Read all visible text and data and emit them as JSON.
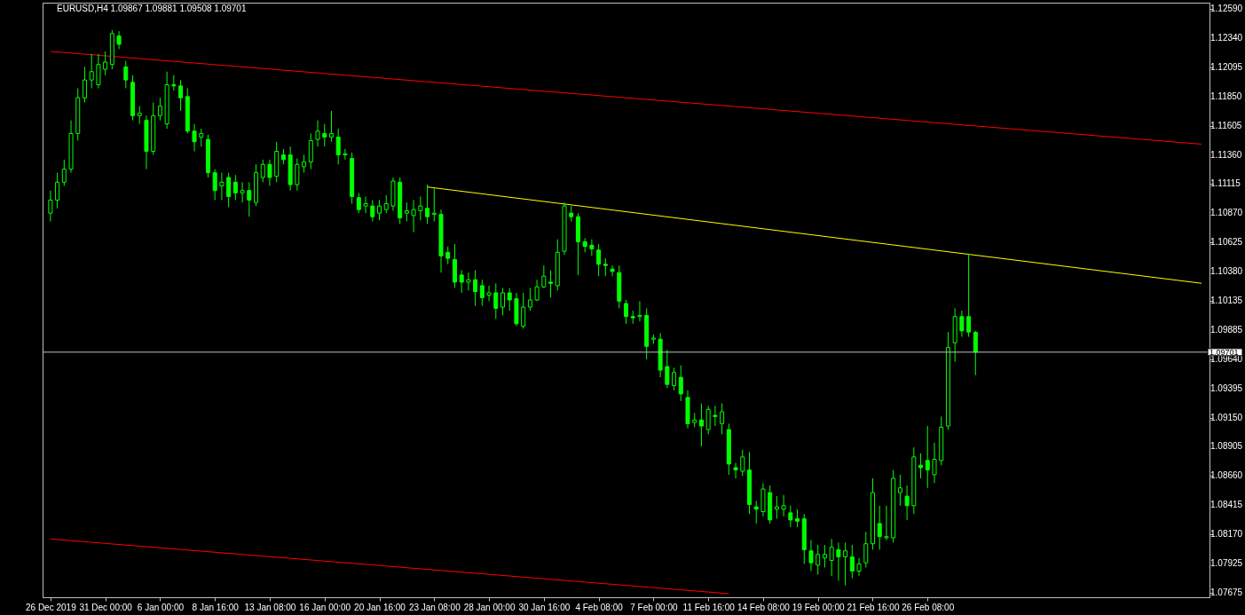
{
  "chart_data": {
    "type": "candlestick",
    "title": "EURUSD,H4  1.09867 1.09881 1.09508 1.09701",
    "color": "#00ff00",
    "categories": [
      "26 Dec 2019",
      null,
      null,
      null,
      null,
      null,
      null,
      null,
      "31 Dec 00:00",
      null,
      null,
      null,
      null,
      null,
      null,
      null,
      "6 Jan 00:00",
      null,
      null,
      null,
      null,
      null,
      null,
      null,
      "8 Jan 16:00",
      null,
      null,
      null,
      null,
      null,
      null,
      null,
      "13 Jan 08:00",
      null,
      null,
      null,
      null,
      null,
      null,
      null,
      "16 Jan 00:00",
      null,
      null,
      null,
      null,
      null,
      null,
      null,
      "20 Jan 16:00",
      null,
      null,
      null,
      null,
      null,
      null,
      null,
      "23 Jan 08:00",
      null,
      null,
      null,
      null,
      null,
      null,
      null,
      "28 Jan 00:00",
      null,
      null,
      null,
      null,
      null,
      null,
      null,
      "30 Jan 16:00",
      null,
      null,
      null,
      null,
      null,
      null,
      null,
      "4 Feb 08:00",
      null,
      null,
      null,
      null,
      null,
      null,
      null,
      "7 Feb 00:00",
      null,
      null,
      null,
      null,
      null,
      null,
      null,
      "11 Feb 16:00",
      null,
      null,
      null,
      null,
      null,
      null,
      null,
      "14 Feb 08:00",
      null,
      null,
      null,
      null,
      null,
      null,
      null,
      "19 Feb 00:00",
      null,
      null,
      null,
      null,
      null,
      null,
      null,
      "21 Feb 16:00",
      null,
      null,
      null,
      null,
      null,
      null,
      null,
      "26 Feb 08:00",
      null,
      null,
      null,
      null,
      null,
      null,
      null,
      null,
      null,
      null,
      null,
      null,
      null,
      null,
      null,
      null,
      null,
      null,
      null,
      null,
      null,
      null,
      null,
      null,
      null,
      null,
      null,
      null,
      null,
      null,
      null,
      null,
      null,
      null,
      null,
      null,
      null,
      null,
      null,
      null
    ],
    "ohlc": [
      [
        1.1087,
        1.1106,
        1.108,
        1.1098
      ],
      [
        1.1098,
        1.1121,
        1.1091,
        1.1113
      ],
      [
        1.1113,
        1.1132,
        1.111,
        1.1124
      ],
      [
        1.1124,
        1.1165,
        1.1121,
        1.1154
      ],
      [
        1.1154,
        1.1192,
        1.1148,
        1.1184
      ],
      [
        1.1184,
        1.121,
        1.118,
        1.1199
      ],
      [
        1.1199,
        1.1221,
        1.1192,
        1.1206
      ],
      [
        1.1195,
        1.1221,
        1.1192,
        1.1212
      ],
      [
        1.1208,
        1.1223,
        1.1203,
        1.1214
      ],
      [
        1.1212,
        1.1241,
        1.1208,
        1.1238
      ],
      [
        1.1236,
        1.124,
        1.1225,
        1.1229
      ],
      [
        1.121,
        1.1215,
        1.1192,
        1.1199
      ],
      [
        1.1197,
        1.1203,
        1.1165,
        1.1169
      ],
      [
        1.1169,
        1.1177,
        1.1162,
        1.1171
      ],
      [
        1.1165,
        1.1169,
        1.1124,
        1.1139
      ],
      [
        1.1139,
        1.118,
        1.1136,
        1.1169
      ],
      [
        1.1169,
        1.1184,
        1.1165,
        1.1177
      ],
      [
        1.1162,
        1.1206,
        1.1158,
        1.1195
      ],
      [
        1.1195,
        1.1203,
        1.119,
        1.1194
      ],
      [
        1.1194,
        1.1199,
        1.1173,
        1.1184
      ],
      [
        1.1185,
        1.1192,
        1.1154,
        1.1156
      ],
      [
        1.1156,
        1.1162,
        1.1139,
        1.1147
      ],
      [
        1.1151,
        1.1158,
        1.1143,
        1.1154
      ],
      [
        1.1149,
        1.1153,
        1.1117,
        1.1121
      ],
      [
        1.1121,
        1.1124,
        1.1098,
        1.1106
      ],
      [
        1.111,
        1.1121,
        1.1098,
        1.1113
      ],
      [
        1.1117,
        1.1121,
        1.1092,
        1.1101
      ],
      [
        1.1113,
        1.1119,
        1.1098,
        1.1104
      ],
      [
        1.1104,
        1.1113,
        1.1096,
        1.1106
      ],
      [
        1.1106,
        1.1113,
        1.1084,
        1.1098
      ],
      [
        1.1096,
        1.1128,
        1.1093,
        1.1121
      ],
      [
        1.1117,
        1.1132,
        1.1113,
        1.1128
      ],
      [
        1.1128,
        1.1132,
        1.111,
        1.1117
      ],
      [
        1.1118,
        1.1147,
        1.1113,
        1.1139
      ],
      [
        1.1136,
        1.1141,
        1.1128,
        1.1132
      ],
      [
        1.1136,
        1.1143,
        1.1106,
        1.1111
      ],
      [
        1.1111,
        1.1133,
        1.1106,
        1.1128
      ],
      [
        1.1126,
        1.1136,
        1.1121,
        1.113
      ],
      [
        1.113,
        1.1154,
        1.1124,
        1.1148
      ],
      [
        1.1149,
        1.1165,
        1.1143,
        1.1156
      ],
      [
        1.1154,
        1.1162,
        1.1143,
        1.1151
      ],
      [
        1.1151,
        1.1173,
        1.1147,
        1.1154
      ],
      [
        1.1151,
        1.1158,
        1.1128,
        1.1136
      ],
      [
        1.1136,
        1.1141,
        1.1132,
        1.1137
      ],
      [
        1.1133,
        1.1138,
        1.1095,
        1.1101
      ],
      [
        1.11,
        1.1104,
        1.1087,
        1.109
      ],
      [
        1.1093,
        1.1101,
        1.1087,
        1.1095
      ],
      [
        1.1093,
        1.1098,
        1.108,
        1.1084
      ],
      [
        1.1087,
        1.1098,
        1.1081,
        1.1093
      ],
      [
        1.109,
        1.1102,
        1.1087,
        1.1095
      ],
      [
        1.1093,
        1.1117,
        1.1089,
        1.1114
      ],
      [
        1.1113,
        1.1117,
        1.1078,
        1.1083
      ],
      [
        1.1087,
        1.1096,
        1.108,
        1.1089
      ],
      [
        1.1085,
        1.1098,
        1.1071,
        1.109
      ],
      [
        1.1089,
        1.1101,
        1.1081,
        1.1093
      ],
      [
        1.1091,
        1.1111,
        1.1078,
        1.1084
      ],
      [
        1.1086,
        1.1108,
        1.108,
        1.1087
      ],
      [
        1.1086,
        1.109,
        1.1037,
        1.1051
      ],
      [
        1.1054,
        1.1059,
        1.1044,
        1.1049
      ],
      [
        1.1048,
        1.1061,
        1.1024,
        1.1029
      ],
      [
        1.1035,
        1.1039,
        1.102,
        1.1029
      ],
      [
        1.1029,
        1.1037,
        1.1022,
        1.1031
      ],
      [
        1.1031,
        1.1039,
        1.1009,
        1.1021
      ],
      [
        1.1026,
        1.1031,
        1.1009,
        1.1016
      ],
      [
        1.1018,
        1.1026,
        1.1013,
        1.102
      ],
      [
        1.102,
        1.1028,
        1.0998,
        1.1007
      ],
      [
        1.1008,
        1.1024,
        1.1001,
        1.102
      ],
      [
        1.102,
        1.1024,
        1.1005,
        1.1014
      ],
      [
        1.1015,
        1.102,
        1.0992,
        1.0994
      ],
      [
        1.0992,
        1.102,
        1.099,
        1.1008
      ],
      [
        1.1008,
        1.1024,
        1.1005,
        1.1014
      ],
      [
        1.1014,
        1.1031,
        1.1013,
        1.1025
      ],
      [
        1.1025,
        1.1043,
        1.1024,
        1.1034
      ],
      [
        1.1029,
        1.1039,
        1.1016,
        1.1028
      ],
      [
        1.1026,
        1.1065,
        1.1022,
        1.1054
      ],
      [
        1.1055,
        1.1096,
        1.1052,
        1.1093
      ],
      [
        1.1087,
        1.1093,
        1.108,
        1.1084
      ],
      [
        1.1084,
        1.1087,
        1.1035,
        1.1063
      ],
      [
        1.1063,
        1.1066,
        1.1054,
        1.1059
      ],
      [
        1.106,
        1.1065,
        1.1051,
        1.1057
      ],
      [
        1.1056,
        1.1061,
        1.1034,
        1.1044
      ],
      [
        1.1044,
        1.1049,
        1.1034,
        1.1043
      ],
      [
        1.104,
        1.1043,
        1.1034,
        1.1038
      ],
      [
        1.1037,
        1.1043,
        1.1007,
        1.1013
      ],
      [
        1.1011,
        1.1014,
        1.0994,
        1.1
      ],
      [
        1.1,
        1.1005,
        1.0994,
        1.0999
      ],
      [
        1.1,
        1.1013,
        1.0996,
        1.1001
      ],
      [
        1.1001,
        1.1007,
        1.0964,
        1.0975
      ],
      [
        1.0981,
        1.0985,
        1.0977,
        1.0982
      ],
      [
        1.0981,
        1.0986,
        1.0949,
        1.0955
      ],
      [
        1.0958,
        1.0972,
        1.094,
        1.0943
      ],
      [
        1.0942,
        1.0957,
        1.0938,
        1.0953
      ],
      [
        1.0949,
        1.0959,
        1.0929,
        1.0935
      ],
      [
        1.0932,
        1.0938,
        1.0906,
        1.091
      ],
      [
        1.0911,
        1.0919,
        1.0907,
        1.0913
      ],
      [
        1.0913,
        1.0927,
        1.0891,
        1.0908
      ],
      [
        1.0905,
        1.0925,
        1.0901,
        1.0922
      ],
      [
        1.0917,
        1.0925,
        1.0908,
        1.0916
      ],
      [
        1.091,
        1.0927,
        1.0901,
        1.092
      ],
      [
        1.0905,
        1.091,
        1.0867,
        1.0876
      ],
      [
        1.0873,
        1.0877,
        1.0864,
        1.0871
      ],
      [
        1.087,
        1.0888,
        1.0866,
        1.0882
      ],
      [
        1.0871,
        1.0886,
        1.0834,
        1.0842
      ],
      [
        1.084,
        1.0845,
        1.0826,
        1.0838
      ],
      [
        1.0836,
        1.086,
        1.0832,
        1.0855
      ],
      [
        1.0852,
        1.0858,
        1.0826,
        1.0829
      ],
      [
        1.0838,
        1.0849,
        1.083,
        1.084
      ],
      [
        1.0838,
        1.085,
        1.0832,
        1.0841
      ],
      [
        1.0835,
        1.0841,
        1.0823,
        1.0829
      ],
      [
        1.083,
        1.0838,
        1.0823,
        1.0828
      ],
      [
        1.083,
        1.0834,
        1.0792,
        1.0804
      ],
      [
        1.0803,
        1.0812,
        1.0786,
        1.0793
      ],
      [
        1.0791,
        1.0808,
        1.0783,
        1.08
      ],
      [
        1.0797,
        1.0808,
        1.0789,
        1.08
      ],
      [
        1.0795,
        1.0813,
        1.0782,
        1.0806
      ],
      [
        1.0804,
        1.081,
        1.0778,
        1.0798
      ],
      [
        1.0798,
        1.081,
        1.0774,
        1.0803
      ],
      [
        1.0798,
        1.0808,
        1.078,
        1.0786
      ],
      [
        1.0786,
        1.0797,
        1.0782,
        1.0792
      ],
      [
        1.0793,
        1.0819,
        1.0789,
        1.0809
      ],
      [
        1.0809,
        1.0864,
        1.0804,
        1.0852
      ],
      [
        1.0826,
        1.0841,
        1.0804,
        1.0815
      ],
      [
        1.0814,
        1.0841,
        1.0812,
        1.0815
      ],
      [
        1.0814,
        1.0871,
        1.081,
        1.0864
      ],
      [
        1.0852,
        1.0867,
        1.0841,
        1.0856
      ],
      [
        1.0849,
        1.0858,
        1.0829,
        1.0841
      ],
      [
        1.0841,
        1.089,
        1.0834,
        1.0882
      ],
      [
        1.0875,
        1.0885,
        1.0864,
        1.0873
      ],
      [
        1.0879,
        1.0908,
        1.0856,
        1.0871
      ],
      [
        1.0867,
        1.0894,
        1.086,
        1.088
      ],
      [
        1.0879,
        1.0916,
        1.0875,
        1.0907
      ],
      [
        1.0908,
        1.0987,
        1.0905,
        1.0974
      ],
      [
        1.0978,
        1.1007,
        1.0962,
        1.1
      ],
      [
        1.1,
        1.1005,
        1.0983,
        1.0988
      ],
      [
        1.1,
        1.1053,
        1.0983,
        1.0987
      ],
      [
        1.09867,
        1.09881,
        1.09508,
        1.09701
      ],
      null,
      null,
      null,
      null,
      null,
      null,
      null,
      null,
      null,
      null,
      null,
      null,
      null,
      null,
      null,
      null,
      null,
      null,
      null,
      null,
      null,
      null,
      null,
      null,
      null,
      null,
      null,
      null,
      null,
      null,
      null,
      null,
      null
    ],
    "series": [
      {
        "type": "line",
        "color": "#ff0000",
        "values": [
          1.1223,
          null,
          null,
          null,
          null,
          null,
          null,
          null,
          null,
          null,
          null,
          null,
          null,
          null,
          null,
          null,
          null,
          null,
          null,
          null,
          null,
          null,
          null,
          null,
          null,
          null,
          null,
          null,
          null,
          null,
          null,
          null,
          null,
          null,
          null,
          null,
          null,
          null,
          null,
          null,
          null,
          null,
          null,
          null,
          null,
          null,
          null,
          null,
          null,
          null,
          null,
          null,
          null,
          null,
          null,
          null,
          null,
          null,
          null,
          null,
          null,
          null,
          null,
          null,
          null,
          null,
          null,
          null,
          null,
          null,
          null,
          null,
          null,
          null,
          null,
          null,
          null,
          null,
          null,
          null,
          null,
          null,
          null,
          null,
          null,
          null,
          null,
          null,
          null,
          null,
          null,
          null,
          null,
          null,
          null,
          null,
          null,
          null,
          null,
          null,
          null,
          null,
          null,
          null,
          null,
          null,
          null,
          null,
          null,
          null,
          null,
          null,
          null,
          null,
          null,
          null,
          null,
          null,
          null,
          null,
          null,
          null,
          null,
          null,
          null,
          null,
          null,
          null,
          null,
          null,
          null,
          null,
          null,
          null,
          null,
          null,
          null,
          null,
          null,
          null,
          null,
          null,
          null,
          null,
          null,
          null,
          null,
          null,
          null,
          null,
          null,
          null,
          null,
          null,
          null,
          null,
          null,
          null,
          null,
          null,
          null,
          null,
          null,
          null,
          null,
          null,
          null,
          null,
          1.1145
        ]
      },
      {
        "type": "line",
        "color": "#ff0000",
        "values": [
          1.0813,
          null,
          null,
          null,
          null,
          null,
          null,
          null,
          null,
          null,
          null,
          null,
          null,
          null,
          null,
          null,
          null,
          null,
          null,
          null,
          null,
          null,
          null,
          null,
          null,
          null,
          null,
          null,
          null,
          null,
          null,
          null,
          null,
          null,
          null,
          null,
          null,
          null,
          null,
          null,
          null,
          null,
          null,
          null,
          null,
          null,
          null,
          null,
          null,
          null,
          null,
          null,
          null,
          null,
          null,
          null,
          null,
          null,
          null,
          null,
          null,
          null,
          null,
          null,
          null,
          null,
          null,
          null,
          null,
          null,
          null,
          null,
          null,
          null,
          null,
          null,
          null,
          null,
          null,
          null,
          null,
          null,
          null,
          null,
          null,
          null,
          null,
          null,
          null,
          null,
          null,
          null,
          null,
          null,
          null,
          null,
          null,
          null,
          null,
          1.0767,
          null,
          null,
          null,
          null,
          null,
          null,
          null,
          null,
          null,
          null,
          null,
          null,
          null,
          null,
          null,
          null,
          null,
          null,
          null,
          null,
          null,
          null,
          null,
          null,
          null,
          null,
          null,
          null,
          null,
          null,
          null,
          null,
          null,
          null,
          null,
          null,
          null,
          null,
          null,
          null,
          null,
          null,
          null,
          null,
          null,
          null,
          null,
          null,
          null,
          null,
          null,
          null,
          null,
          null,
          null,
          null,
          null,
          null,
          null,
          null,
          null,
          null,
          null,
          null,
          null,
          null,
          null,
          null,
          null
        ]
      },
      {
        "type": "line",
        "color": "#ffff00",
        "values": [
          null,
          null,
          null,
          null,
          null,
          null,
          null,
          null,
          null,
          null,
          null,
          null,
          null,
          null,
          null,
          null,
          null,
          null,
          null,
          null,
          null,
          null,
          null,
          null,
          null,
          null,
          null,
          null,
          null,
          null,
          null,
          null,
          null,
          null,
          null,
          null,
          null,
          null,
          null,
          null,
          null,
          null,
          null,
          null,
          null,
          null,
          null,
          null,
          null,
          null,
          null,
          null,
          null,
          null,
          null,
          1.1109,
          null,
          null,
          null,
          null,
          null,
          null,
          null,
          null,
          null,
          null,
          null,
          null,
          null,
          null,
          null,
          null,
          null,
          null,
          null,
          null,
          null,
          null,
          null,
          null,
          null,
          null,
          null,
          null,
          null,
          null,
          null,
          null,
          null,
          null,
          null,
          null,
          null,
          null,
          null,
          null,
          null,
          null,
          null,
          null,
          null,
          null,
          null,
          null,
          null,
          null,
          null,
          null,
          null,
          null,
          null,
          null,
          null,
          null,
          null,
          null,
          null,
          null,
          null,
          null,
          null,
          null,
          null,
          null,
          null,
          null,
          null,
          null,
          null,
          null,
          null,
          null,
          null,
          null,
          null,
          null,
          null,
          null,
          null,
          null,
          null,
          null,
          null,
          null,
          null,
          null,
          null,
          null,
          null,
          null,
          null,
          null,
          null,
          null,
          null,
          null,
          null,
          null,
          null,
          null,
          null,
          null,
          null,
          null,
          null,
          null,
          null,
          null,
          1.1028
        ]
      }
    ],
    "ylim": [
      1.0764,
      1.1264
    ],
    "yticks": [
      {
        "value": 1.1259,
        "label": "1.12590"
      },
      {
        "value": 1.1234,
        "label": "1.12340"
      },
      1.12095,
      {
        "value": 1.1185,
        "label": "1.11850"
      },
      1.11605,
      {
        "value": 1.1136,
        "label": "1.11360"
      },
      1.11115,
      {
        "value": 1.1087,
        "label": "1.10870"
      },
      1.10625,
      {
        "value": 1.1038,
        "label": "1.10380"
      },
      1.10135,
      1.09885,
      {
        "value": 1.0964,
        "label": "1.09640"
      },
      1.09395,
      {
        "value": 1.0915,
        "label": "1.09150"
      },
      1.08905,
      {
        "value": 1.0866,
        "label": "1.08660"
      },
      1.08415,
      {
        "value": 1.0817,
        "label": "1.08170"
      },
      1.07925,
      1.07675
    ],
    "ref_lines": [
      {
        "axis": "y",
        "value": 1.09701,
        "label": "1.09701",
        "color": "#c0c0c0"
      }
    ]
  }
}
